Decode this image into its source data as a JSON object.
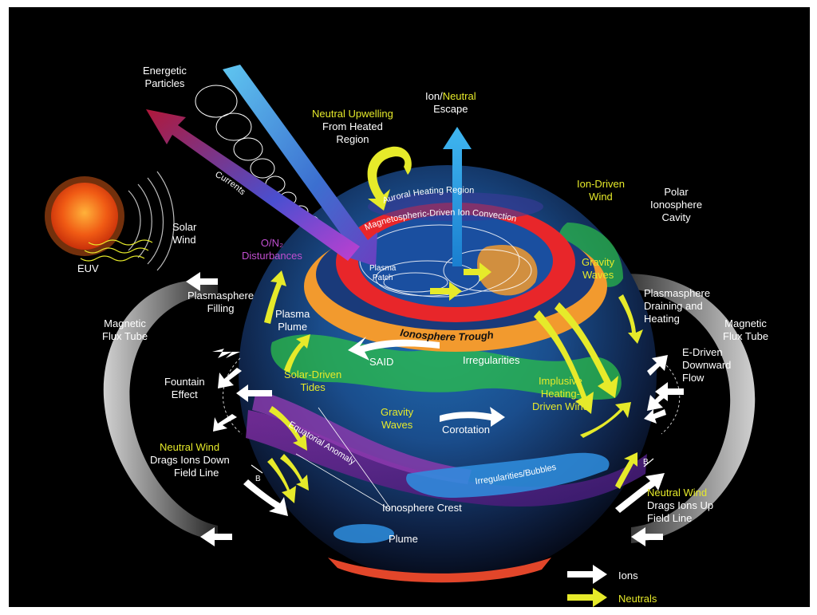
{
  "labels": {
    "energetic_particles": [
      "Energetic",
      "Particles"
    ],
    "neutral_upwelling": "Neutral Upwelling",
    "from_heated_region": [
      "From Heated",
      "Region"
    ],
    "ion_neutral_escape_ion": "Ion/",
    "ion_neutral_escape_neutral": "Neutral",
    "ion_neutral_escape_escape": "Escape",
    "currents": "Currents",
    "solar_wind": [
      "Solar",
      "Wind"
    ],
    "euv": "EUV",
    "on2_disturbances": [
      "O/N₂",
      "Disturbances"
    ],
    "auroral_heating_region": "Auroral Heating Region",
    "magnetospheric_convection": "Magnetospheric-Driven Ion Convection",
    "plasma_patch": [
      "Plasma",
      "Patch"
    ],
    "ion_driven_wind": [
      "Ion-Driven",
      "Wind"
    ],
    "polar_ionosphere_cavity": [
      "Polar",
      "Ionosphere",
      "Cavity"
    ],
    "gravity_waves_top": [
      "Gravity",
      "Waves"
    ],
    "plasmasphere_filling": [
      "Plasmasphere",
      "Filling"
    ],
    "plasma_plume": [
      "Plasma",
      "Plume"
    ],
    "magnetic_flux_tube_left": [
      "Magnetic",
      "Flux Tube"
    ],
    "magnetic_flux_tube_right": [
      "Magnetic",
      "Flux Tube"
    ],
    "plasmasphere_draining": [
      "Plasmasphere",
      "Draining and",
      "Heating"
    ],
    "ionosphere_trough": "Ionosphere Trough",
    "said": "SAID",
    "irregularities": "Irregularities",
    "fountain_effect": [
      "Fountain",
      "Effect"
    ],
    "solar_driven_tides": [
      "Solar-Driven",
      "Tides"
    ],
    "e_driven_flow": [
      "E-Driven",
      "Downward",
      "Flow"
    ],
    "implusive_heating": [
      "Implusive",
      "Heating-",
      "Driven Wind"
    ],
    "gravity_waves_mid": [
      "Gravity",
      "Waves"
    ],
    "corotation": "Corotation",
    "neutral_wind_left": "Neutral Wind",
    "drags_ions_down": [
      "Drags Ions Down",
      "Field Line"
    ],
    "b_left": "B",
    "b_right": "B",
    "equatorial_anomaly": "Equatorial Anomaly",
    "irregularities_bubbles": "Irregularities/Bubbles",
    "ionosphere_crest": "Ionosphere Crest",
    "neutral_wind_right": "Neutral Wind",
    "drags_ions_up": [
      "Drags Ions Up",
      "Field Line"
    ],
    "plume": "Plume"
  },
  "legend": {
    "ions": "Ions",
    "neutrals": "Neutrals"
  },
  "colors": {
    "background": "#000000",
    "neutral_yellow": "#e6ea2a",
    "ion_white": "#ffffff",
    "disturbance_purple": "#c04fd0",
    "auroral_red": "#e8262a",
    "trough_orange": "#f29a2e"
  }
}
